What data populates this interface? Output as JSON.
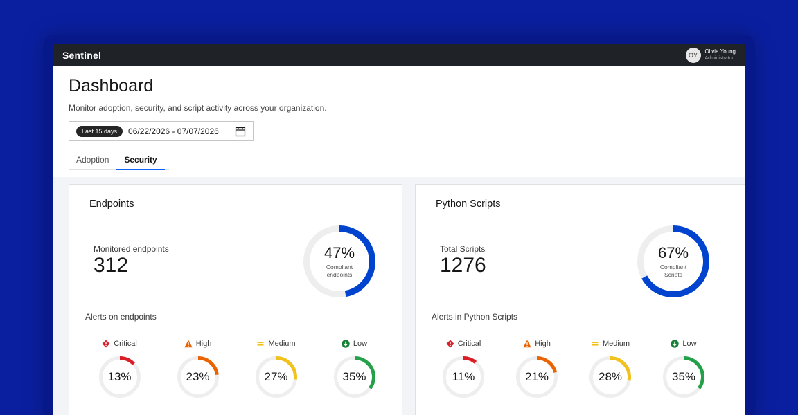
{
  "topbar": {
    "brand": "Sentinel",
    "user_initials": "OY",
    "user_name": "Olivia Young",
    "user_role": "Administrator"
  },
  "header": {
    "title": "Dashboard",
    "subtitle": "Monitor adoption, security, and script activity across your organization.",
    "date_chip": "Last 15 days",
    "date_range": "06/22/2026 - 07/07/2026",
    "calendar_icon": "calendar-icon"
  },
  "tabs": [
    {
      "label": "Adoption",
      "active": false
    },
    {
      "label": "Security",
      "active": true
    }
  ],
  "colors": {
    "accent_blue": "#0043ce",
    "critical": "#da1e28",
    "high": "#eb6200",
    "medium": "#f1c21b",
    "low": "#24a148",
    "track": "#eeeeee"
  },
  "cards": [
    {
      "title": "Endpoints",
      "metric_label": "Monitored endpoints",
      "metric_value": "312",
      "donut_pct": 47,
      "donut_pct_label": "47%",
      "donut_caption": "Compliant endpoints",
      "alerts_label": "Alerts on endpoints",
      "severities": [
        {
          "label": "Critical",
          "pct": 13,
          "pct_label": "13%",
          "icon": "critical-icon"
        },
        {
          "label": "High",
          "pct": 23,
          "pct_label": "23%",
          "icon": "warning-icon"
        },
        {
          "label": "Medium",
          "pct": 27,
          "pct_label": "27%",
          "icon": "equals-icon"
        },
        {
          "label": "Low",
          "pct": 35,
          "pct_label": "35%",
          "icon": "arrow-down-icon"
        }
      ]
    },
    {
      "title": "Python Scripts",
      "metric_label": "Total Scripts",
      "metric_value": "1276",
      "donut_pct": 67,
      "donut_pct_label": "67%",
      "donut_caption": "Compliant Scripts",
      "alerts_label": "Alerts in Python Scripts",
      "severities": [
        {
          "label": "Critical",
          "pct": 11,
          "pct_label": "11%",
          "icon": "critical-icon"
        },
        {
          "label": "High",
          "pct": 21,
          "pct_label": "21%",
          "icon": "warning-icon"
        },
        {
          "label": "Medium",
          "pct": 28,
          "pct_label": "28%",
          "icon": "equals-icon"
        },
        {
          "label": "Low",
          "pct": 35,
          "pct_label": "35%",
          "icon": "arrow-down-icon"
        }
      ]
    }
  ]
}
